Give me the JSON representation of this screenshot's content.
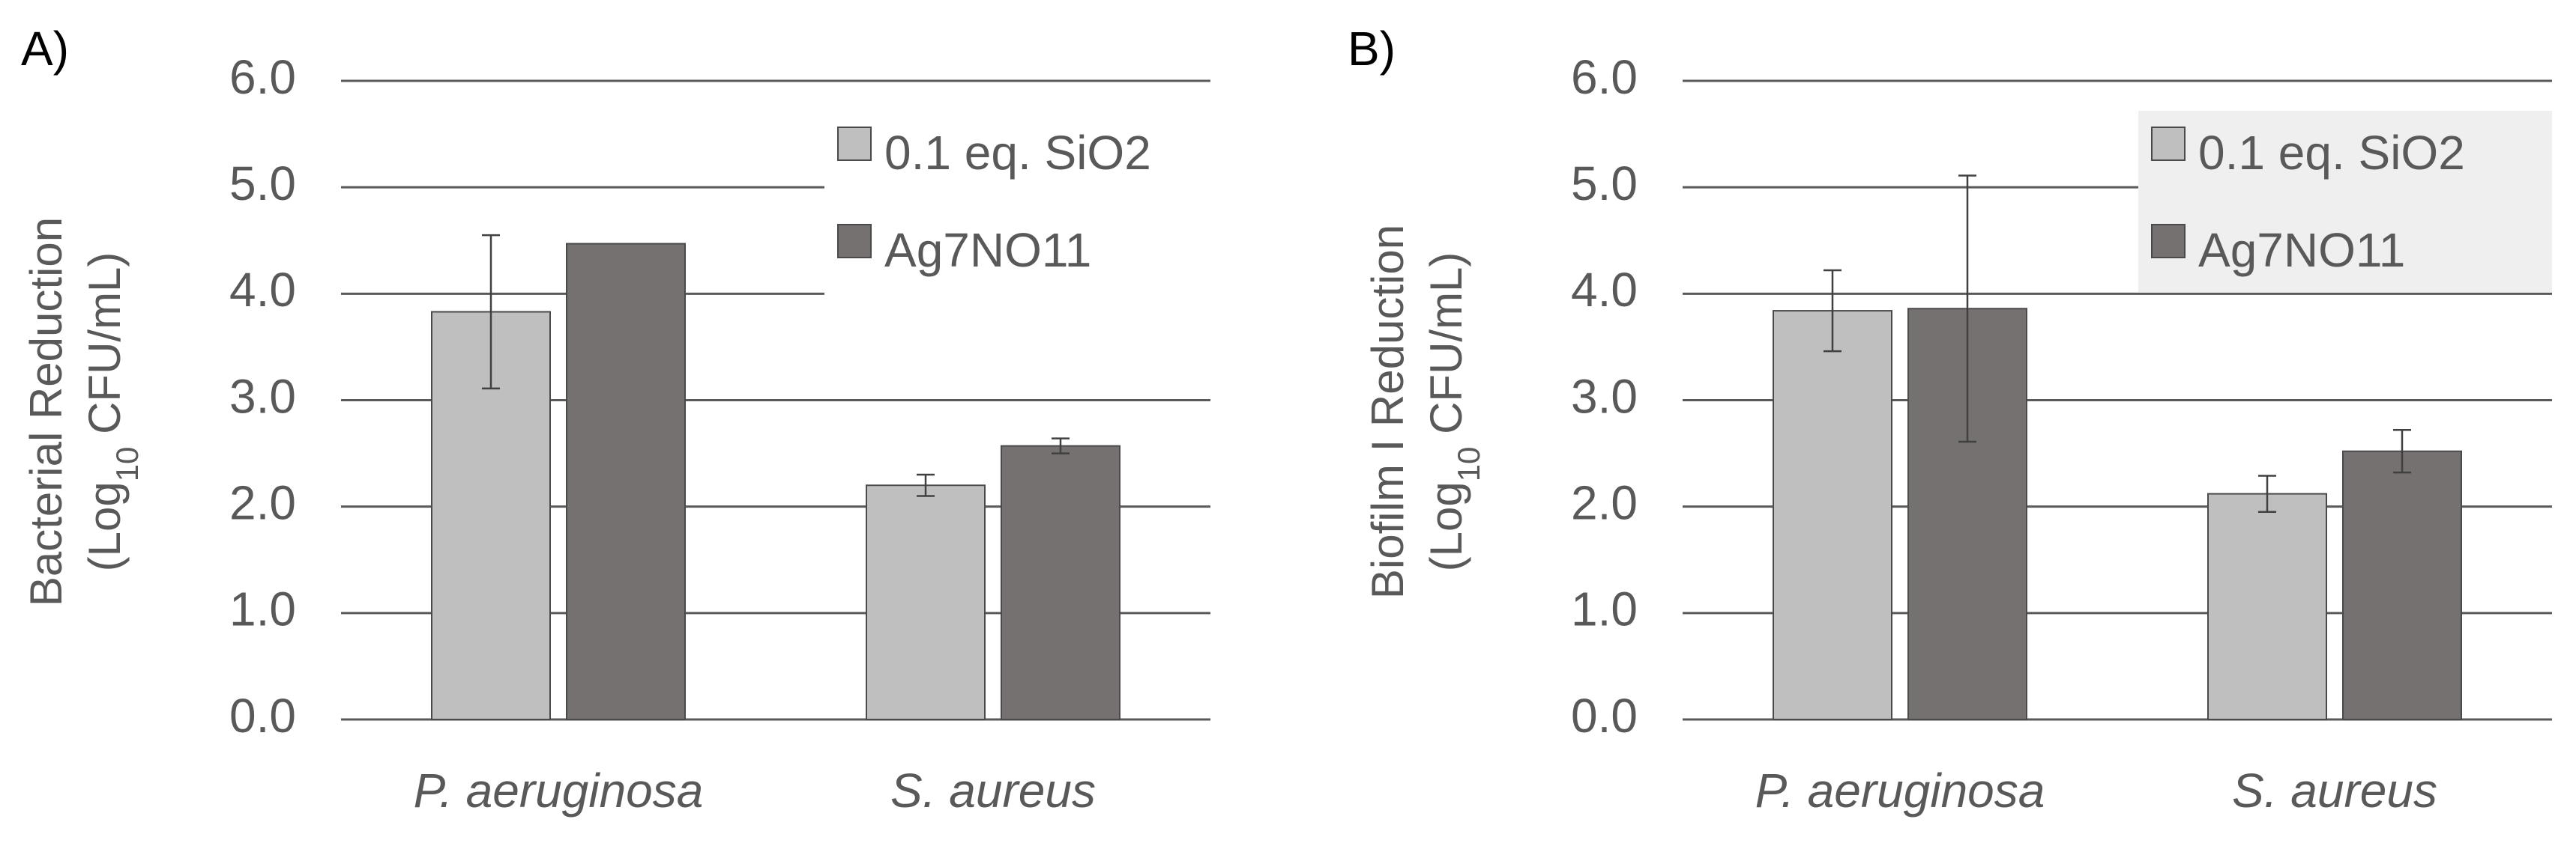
{
  "colors": {
    "series_light": "#bfbfbf",
    "series_dark": "#767171",
    "bar_stroke": "#4a4a4a",
    "gridline": "#595959",
    "text": "#595959",
    "legend_bg_panel_b": "#efefef"
  },
  "chart_data": [
    {
      "panel": "A)",
      "type": "bar",
      "title": "",
      "ylabel_line1": "Bacterial Reduction",
      "ylabel_line2_prefix": "(Log",
      "ylabel_line2_sub": "10",
      "ylabel_line2_suffix": " CFU/mL)",
      "xlabel": "",
      "ylim": [
        0,
        6
      ],
      "yticks": [
        "0.0",
        "1.0",
        "2.0",
        "3.0",
        "4.0",
        "5.0",
        "6.0"
      ],
      "categories": [
        "P. aeruginosa",
        "S. aureus"
      ],
      "legend_position": "top-right",
      "series": [
        {
          "name": "0.1 eq. SiO2",
          "color": "#bfbfbf",
          "values": [
            3.83,
            2.2
          ],
          "errors": [
            0.72,
            0.1
          ]
        },
        {
          "name": "Ag7NO11",
          "color": "#767171",
          "values": [
            4.47,
            2.57
          ],
          "errors": [
            0.0,
            0.07
          ]
        }
      ]
    },
    {
      "panel": "B)",
      "type": "bar",
      "title": "",
      "ylabel_line1": "Biofilm I Reduction",
      "ylabel_line2_prefix": "(Log",
      "ylabel_line2_sub": "10",
      "ylabel_line2_suffix": " CFU/mL)",
      "xlabel": "",
      "ylim": [
        0,
        6
      ],
      "yticks": [
        "0.0",
        "1.0",
        "2.0",
        "3.0",
        "4.0",
        "5.0",
        "6.0"
      ],
      "categories": [
        "P. aeruginosa",
        "S. aureus"
      ],
      "legend_position": "top-right",
      "series": [
        {
          "name": "0.1 eq. SiO2",
          "color": "#bfbfbf",
          "values": [
            3.84,
            2.12
          ],
          "errors": [
            0.38,
            0.17
          ]
        },
        {
          "name": "Ag7NO11",
          "color": "#767171",
          "values": [
            3.86,
            2.52
          ],
          "errors": [
            1.25,
            0.2
          ]
        }
      ]
    }
  ]
}
